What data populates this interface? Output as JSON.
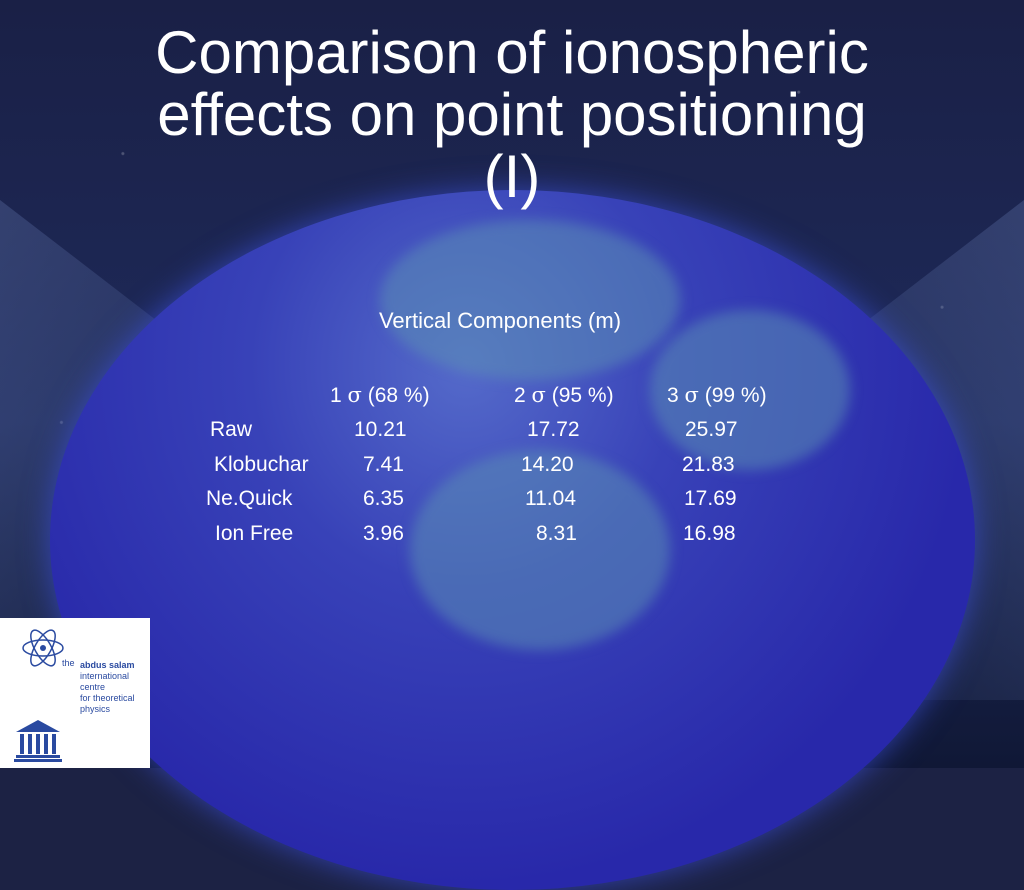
{
  "slide": {
    "title": "Comparison of ionospheric\neffects on point positioning\n(I)",
    "subtitle": "Vertical Components (m)"
  },
  "table": {
    "headers": [
      {
        "number": "1",
        "sigma": "σ",
        "pct": "(68 %)"
      },
      {
        "number": "2",
        "sigma": "σ",
        "pct": "(95 %)"
      },
      {
        "number": "3",
        "sigma": "σ",
        "pct": "(99 %)"
      }
    ],
    "rows": [
      {
        "label": "Raw",
        "values": [
          "10.21",
          "17.72",
          "25.97"
        ]
      },
      {
        "label": "Klobuchar",
        "values": [
          "7.41",
          "14.20",
          "21.83"
        ]
      },
      {
        "label": "Ne.Quick",
        "values": [
          "6.35",
          "11.04",
          "17.69"
        ]
      },
      {
        "label": "Ion Free",
        "values": [
          "3.96",
          "8.31",
          "16.98"
        ]
      }
    ]
  },
  "logo": {
    "the": "the",
    "lines": [
      "abdus salam",
      "international",
      "centre",
      "for theoretical",
      "physics"
    ]
  },
  "colors": {
    "globe": "#2a2aa8",
    "text": "#ffffff",
    "logo_blue": "#2a4aa0"
  }
}
